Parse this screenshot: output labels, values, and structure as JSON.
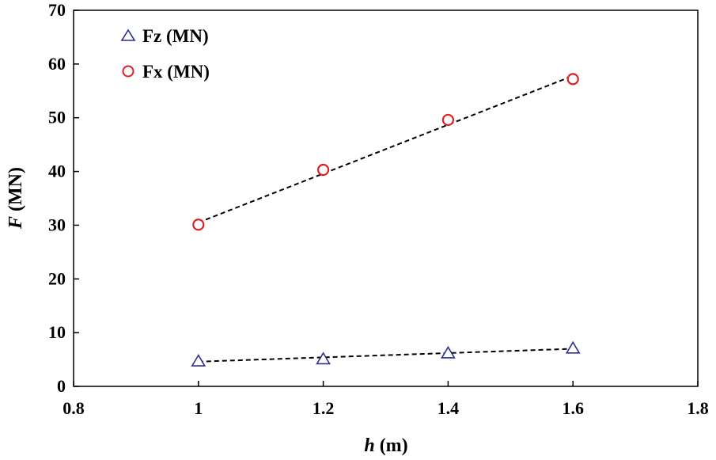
{
  "chart_data": {
    "type": "scatter",
    "title": "",
    "xlabel": {
      "var": "h",
      "unit": " (m)"
    },
    "ylabel": {
      "var": "F",
      "unit": " (MN)"
    },
    "xlim": [
      0.8,
      1.8
    ],
    "ylim": [
      0,
      70
    ],
    "xticks": [
      0.8,
      1,
      1.2,
      1.4,
      1.6,
      1.8
    ],
    "xtick_labels": [
      "0.8",
      "1",
      "1.2",
      "1.4",
      "1.6",
      "1.8"
    ],
    "yticks": [
      0,
      10,
      20,
      30,
      40,
      50,
      60,
      70
    ],
    "ytick_labels": [
      "0",
      "10",
      "20",
      "30",
      "40",
      "50",
      "60",
      "70"
    ],
    "grid": false,
    "legend_position": "top-left",
    "series": [
      {
        "name": "Fz (MN)",
        "marker": "triangle",
        "color": "#2b2f8f",
        "x": [
          1.0,
          1.2,
          1.4,
          1.6
        ],
        "y": [
          4.7,
          5.1,
          6.2,
          7.1
        ],
        "trendline": {
          "x": [
            1.0,
            1.6
          ],
          "y": [
            4.6,
            7.0
          ]
        }
      },
      {
        "name": "Fx (MN)",
        "marker": "circle",
        "color": "#e02020",
        "x": [
          1.0,
          1.2,
          1.4,
          1.6
        ],
        "y": [
          30.1,
          40.3,
          49.6,
          57.2
        ],
        "trendline": {
          "x": [
            1.0,
            1.6
          ],
          "y": [
            30.5,
            57.8
          ]
        }
      }
    ]
  }
}
